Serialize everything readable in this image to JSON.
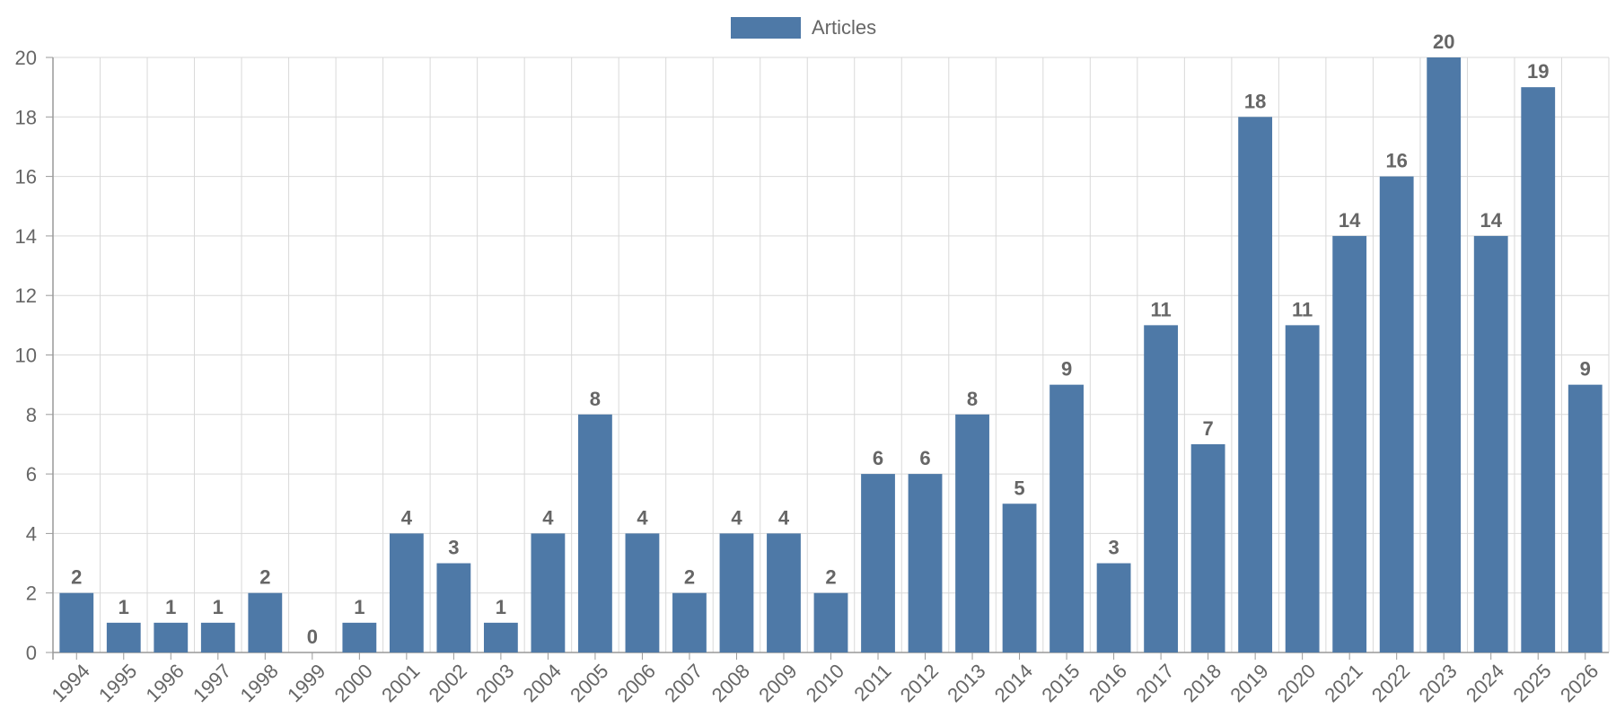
{
  "chart_data": {
    "type": "bar",
    "categories": [
      "1994",
      "1995",
      "1996",
      "1997",
      "1998",
      "1999",
      "2000",
      "2001",
      "2002",
      "2003",
      "2004",
      "2005",
      "2006",
      "2007",
      "2008",
      "2009",
      "2010",
      "2011",
      "2012",
      "2013",
      "2014",
      "2015",
      "2016",
      "2017",
      "2018",
      "2019",
      "2020",
      "2021",
      "2022",
      "2023",
      "2024",
      "2025",
      "2026"
    ],
    "series": [
      {
        "name": "Articles",
        "values": [
          2,
          1,
          1,
          1,
          2,
          0,
          1,
          4,
          3,
          1,
          4,
          8,
          4,
          2,
          4,
          4,
          2,
          6,
          6,
          8,
          5,
          9,
          3,
          11,
          7,
          18,
          11,
          14,
          16,
          20,
          14,
          19,
          9
        ]
      }
    ],
    "ylim": [
      0,
      20
    ],
    "yticks": [
      0,
      2,
      4,
      6,
      8,
      10,
      12,
      14,
      16,
      18,
      20
    ],
    "grid": true,
    "legend_position": "top-center",
    "data_labels": true,
    "colors": {
      "bar": "#4e79a7",
      "grid": "#d9d9d9",
      "axis": "#999999",
      "text": "#666666"
    }
  }
}
